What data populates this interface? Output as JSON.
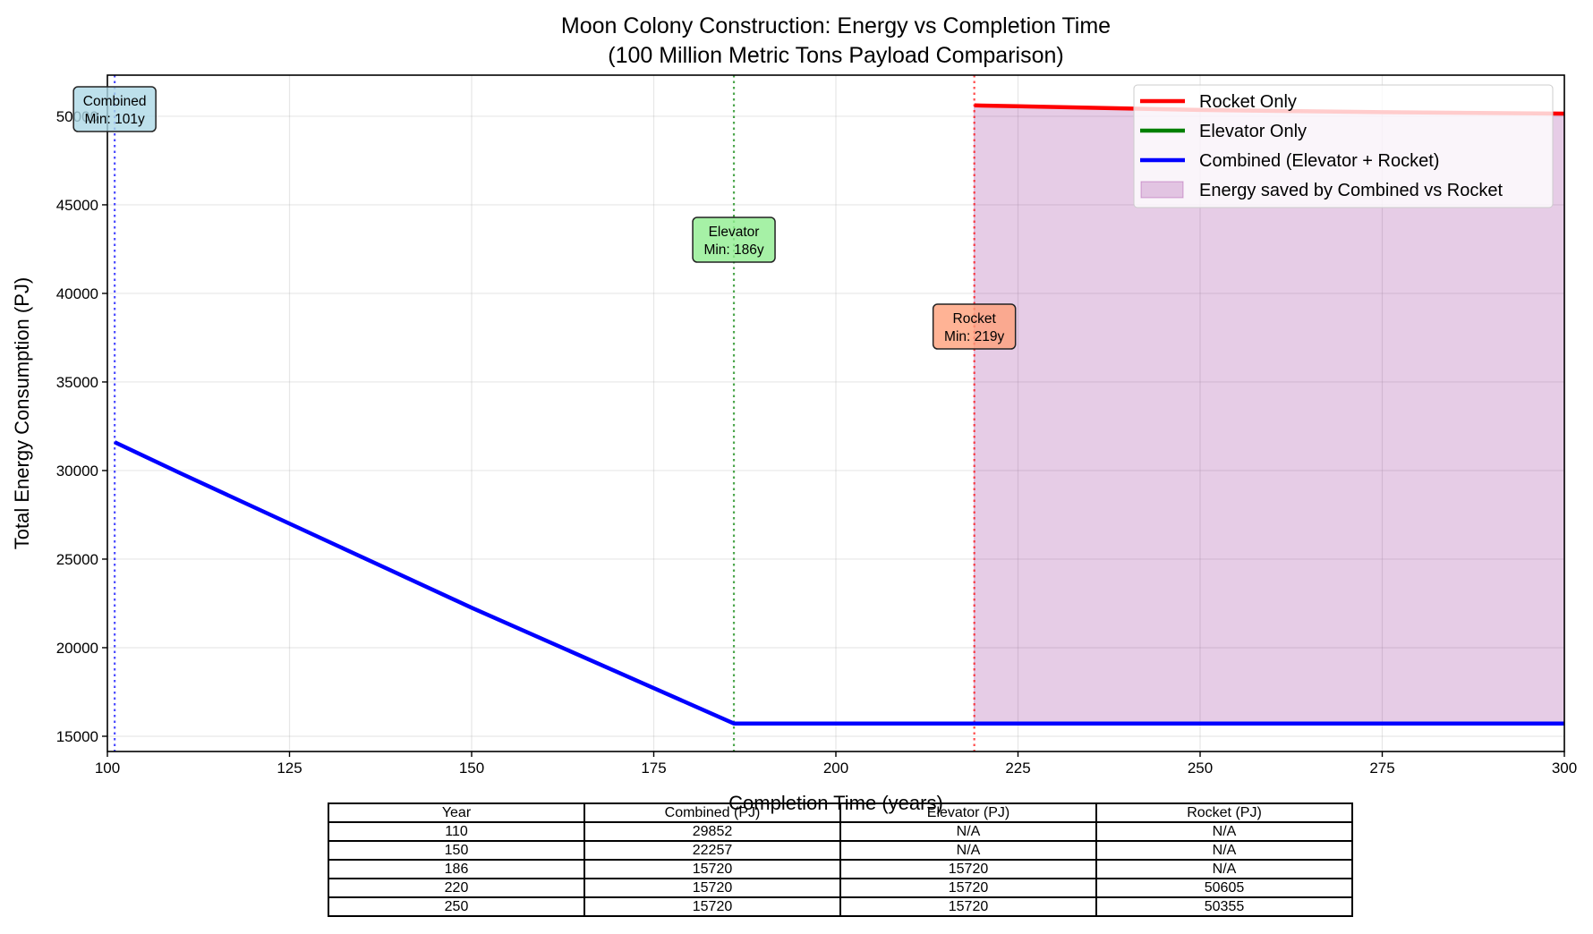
{
  "chart_data": {
    "type": "line",
    "title": "Moon Colony Construction: Energy vs Completion Time",
    "subtitle": "(100 Million Metric Tons Payload Comparison)",
    "xlabel": "Completion Time (years)",
    "ylabel": "Total Energy Consumption (PJ)",
    "xlim": [
      100,
      300
    ],
    "ylim": [
      14140,
      52320
    ],
    "xticks": [
      100,
      125,
      150,
      175,
      200,
      225,
      250,
      275,
      300
    ],
    "yticks": [
      15000,
      20000,
      25000,
      30000,
      35000,
      40000,
      45000,
      50000
    ],
    "grid": true,
    "legend_position": "top-right",
    "series": [
      {
        "name": "Rocket Only",
        "color": "#ff0000",
        "points": [
          [
            219,
            50615
          ],
          [
            220,
            50605
          ],
          [
            250,
            50355
          ],
          [
            275,
            50230
          ],
          [
            300,
            50150
          ]
        ]
      },
      {
        "name": "Elevator Only",
        "color": "#008000",
        "points": [
          [
            186,
            15720
          ],
          [
            220,
            15720
          ],
          [
            250,
            15720
          ],
          [
            300,
            15720
          ]
        ]
      },
      {
        "name": "Combined (Elevator + Rocket)",
        "color": "#0000ff",
        "points": [
          [
            101,
            31600
          ],
          [
            110,
            29852
          ],
          [
            150,
            22257
          ],
          [
            186,
            15720
          ],
          [
            220,
            15720
          ],
          [
            250,
            15720
          ],
          [
            300,
            15720
          ]
        ]
      }
    ],
    "fill": {
      "name": "Energy saved by Combined vs Rocket",
      "color": "#800080",
      "opacity": 0.2,
      "x_range": [
        219,
        300
      ]
    },
    "vlines": [
      {
        "x": 101,
        "color": "#0000ff",
        "label_line1": "Combined",
        "label_line2": "Min: 101y",
        "box_color": "#add8e6"
      },
      {
        "x": 186,
        "color": "#008000",
        "label_line1": "Elevator",
        "label_line2": "Min: 186y",
        "box_color": "#90ee90"
      },
      {
        "x": 219,
        "color": "#ff0000",
        "label_line1": "Rocket",
        "label_line2": "Min: 219y",
        "box_color": "#ffa07a"
      }
    ],
    "table": {
      "headers": [
        "Year",
        "Combined (PJ)",
        "Elevator (PJ)",
        "Rocket (PJ)"
      ],
      "rows": [
        [
          "110",
          "29852",
          "N/A",
          "N/A"
        ],
        [
          "150",
          "22257",
          "N/A",
          "N/A"
        ],
        [
          "186",
          "15720",
          "15720",
          "N/A"
        ],
        [
          "220",
          "15720",
          "15720",
          "50605"
        ],
        [
          "250",
          "15720",
          "15720",
          "50355"
        ]
      ]
    }
  }
}
